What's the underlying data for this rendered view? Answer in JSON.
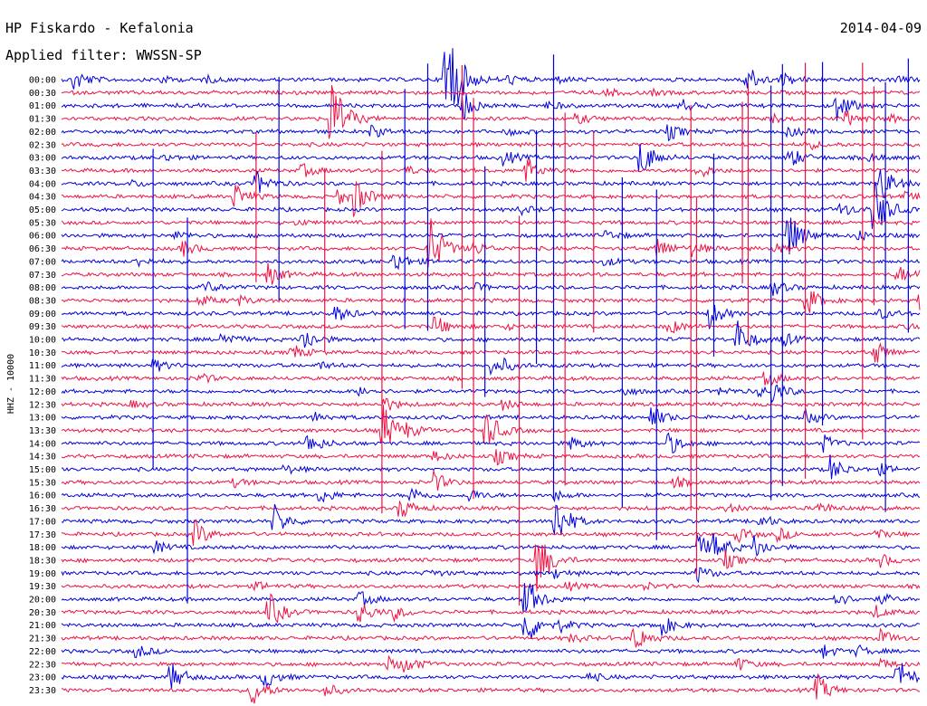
{
  "header": {
    "station": "HP Fiskardo - Kefalonia",
    "date": "2014-04-09",
    "filter": "Applied filter: WWSSN-SP"
  },
  "chart_data": {
    "type": "line",
    "title": "HP Fiskardo - Kefalonia",
    "date": "2014-04-09",
    "filter": "Applied filter: WWSSN-SP",
    "ylabel": "HHZ - 10000",
    "xlabel": "",
    "legend": "none",
    "grid": false,
    "colors": [
      "#0000dd",
      "#ee1144"
    ],
    "rows": [
      "00:00",
      "00:30",
      "01:00",
      "01:30",
      "02:00",
      "02:30",
      "03:00",
      "03:30",
      "04:00",
      "04:30",
      "05:00",
      "05:30",
      "06:00",
      "06:30",
      "07:00",
      "07:30",
      "08:00",
      "08:30",
      "09:00",
      "09:30",
      "10:00",
      "10:30",
      "11:00",
      "11:30",
      "12:00",
      "12:30",
      "13:00",
      "13:30",
      "14:00",
      "14:30",
      "15:00",
      "15:30",
      "16:00",
      "16:30",
      "17:00",
      "17:30",
      "18:00",
      "18:30",
      "19:00",
      "19:30",
      "20:00",
      "20:30",
      "21:00",
      "21:30",
      "22:00",
      "22:30",
      "23:00",
      "23:30"
    ],
    "row_minutes": 30,
    "events_minute_amplitude": [
      [
        [
          2,
          14
        ],
        [
          17,
          5
        ],
        [
          25,
          4
        ],
        [
          67,
          90
        ],
        [
          78,
          6
        ],
        [
          86,
          5
        ],
        [
          119,
          24
        ],
        [
          126,
          7
        ],
        [
          146,
          4
        ]
      ],
      [
        [
          95,
          5
        ],
        [
          103,
          3
        ]
      ],
      [
        [
          70,
          18
        ],
        [
          85,
          5
        ],
        [
          108,
          8
        ],
        [
          135,
          22
        ]
      ],
      [
        [
          47,
          55
        ],
        [
          90,
          6
        ],
        [
          124,
          5
        ],
        [
          137,
          10
        ],
        [
          144,
          6
        ]
      ],
      [
        [
          54,
          8
        ],
        [
          78,
          4
        ],
        [
          106,
          10
        ],
        [
          127,
          6
        ]
      ],
      [
        [
          130,
          6
        ]
      ],
      [
        [
          18,
          4
        ],
        [
          77,
          10
        ],
        [
          101,
          26
        ],
        [
          127,
          14
        ],
        [
          141,
          5
        ]
      ],
      [
        [
          42,
          8
        ],
        [
          60,
          5
        ],
        [
          81,
          16
        ],
        [
          111,
          10
        ]
      ],
      [
        [
          34,
          14
        ],
        [
          12,
          4
        ],
        [
          143,
          24
        ]
      ],
      [
        [
          30,
          16
        ],
        [
          48,
          10
        ],
        [
          51,
          22
        ],
        [
          147,
          5
        ]
      ],
      [
        [
          80,
          5
        ],
        [
          136,
          9
        ],
        [
          142,
          36
        ]
      ],
      [
        [
          41,
          3
        ]
      ],
      [
        [
          20,
          5
        ],
        [
          95,
          6
        ],
        [
          127,
          30
        ],
        [
          139,
          6
        ]
      ],
      [
        [
          21,
          10
        ],
        [
          64,
          45
        ],
        [
          72,
          8
        ],
        [
          104,
          14
        ],
        [
          110,
          8
        ],
        [
          124,
          8
        ]
      ],
      [
        [
          13,
          6
        ],
        [
          58,
          14
        ],
        [
          95,
          5
        ]
      ],
      [
        [
          36,
          14
        ],
        [
          146,
          10
        ],
        [
          150,
          6
        ]
      ],
      [
        [
          25,
          8
        ],
        [
          72,
          5
        ],
        [
          124,
          10
        ]
      ],
      [
        [
          24,
          7
        ],
        [
          31,
          5
        ],
        [
          130,
          18
        ],
        [
          150,
          10
        ]
      ],
      [
        [
          48,
          10
        ],
        [
          113,
          18
        ],
        [
          143,
          6
        ]
      ],
      [
        [
          65,
          14
        ],
        [
          77,
          4
        ],
        [
          106,
          10
        ],
        [
          148,
          5
        ]
      ],
      [
        [
          28,
          10
        ],
        [
          42,
          16
        ],
        [
          118,
          22
        ],
        [
          126,
          8
        ]
      ],
      [
        [
          40,
          10
        ],
        [
          142,
          14
        ]
      ],
      [
        [
          16,
          8
        ],
        [
          77,
          5
        ],
        [
          75,
          8
        ],
        [
          45,
          4
        ]
      ],
      [
        [
          24,
          6
        ],
        [
          123,
          6
        ],
        [
          123,
          4
        ]
      ],
      [
        [
          52,
          6
        ],
        [
          98,
          5
        ],
        [
          115,
          5
        ],
        [
          122,
          6
        ],
        [
          124,
          12
        ]
      ],
      [
        [
          12,
          4
        ],
        [
          56,
          10
        ],
        [
          77,
          6
        ]
      ],
      [
        [
          44,
          6
        ],
        [
          103,
          14
        ],
        [
          130,
          8
        ]
      ],
      [
        [
          56,
          32
        ],
        [
          74,
          26
        ],
        [
          60,
          6
        ]
      ],
      [
        [
          43,
          14
        ],
        [
          89,
          8
        ],
        [
          106,
          14
        ],
        [
          133,
          10
        ]
      ],
      [
        [
          76,
          10
        ],
        [
          65,
          6
        ]
      ],
      [
        [
          39,
          5
        ],
        [
          134,
          18
        ],
        [
          143,
          6
        ]
      ],
      [
        [
          30,
          5
        ],
        [
          65,
          12
        ],
        [
          107,
          6
        ]
      ],
      [
        [
          45,
          10
        ],
        [
          61,
          10
        ],
        [
          71,
          8
        ],
        [
          86,
          6
        ]
      ],
      [
        [
          59,
          14
        ],
        [
          132,
          8
        ],
        [
          116,
          5
        ]
      ],
      [
        [
          37,
          20
        ],
        [
          86,
          38
        ],
        [
          122,
          8
        ]
      ],
      [
        [
          23,
          18
        ],
        [
          118,
          8
        ],
        [
          125,
          8
        ],
        [
          142,
          6
        ]
      ],
      [
        [
          16,
          8
        ],
        [
          111,
          16
        ],
        [
          114,
          18
        ],
        [
          121,
          14
        ]
      ],
      [
        [
          83,
          40
        ],
        [
          116,
          10
        ],
        [
          143,
          8
        ]
      ],
      [
        [
          64,
          5
        ],
        [
          86,
          6
        ],
        [
          111,
          10
        ]
      ],
      [
        [
          34,
          5
        ],
        [
          88,
          5
        ],
        [
          101,
          6
        ]
      ],
      [
        [
          81,
          28
        ],
        [
          52,
          10
        ],
        [
          135,
          10
        ],
        [
          143,
          6
        ]
      ],
      [
        [
          36,
          24
        ],
        [
          52,
          14
        ],
        [
          58,
          8
        ],
        [
          142,
          8
        ]
      ],
      [
        [
          81,
          26
        ],
        [
          104,
          18
        ],
        [
          87,
          6
        ]
      ],
      [
        [
          89,
          5
        ],
        [
          100,
          18
        ],
        [
          143,
          10
        ]
      ],
      [
        [
          13,
          8
        ],
        [
          133,
          8
        ],
        [
          139,
          6
        ]
      ],
      [
        [
          57,
          8
        ],
        [
          60,
          10
        ],
        [
          118,
          8
        ],
        [
          143,
          6
        ]
      ],
      [
        [
          19,
          18
        ],
        [
          35,
          16
        ],
        [
          146,
          24
        ],
        [
          92,
          5
        ]
      ],
      [
        [
          33,
          22
        ],
        [
          46,
          8
        ],
        [
          132,
          18
        ]
      ]
    ],
    "vertical_spikes_minute": [
      16,
      46,
      64,
      70,
      86,
      93,
      104,
      111,
      124,
      130,
      133,
      142,
      144,
      119,
      22,
      34,
      38,
      56,
      60,
      72,
      74,
      80,
      83,
      88,
      98,
      110,
      114,
      120,
      126,
      140,
      148
    ],
    "axis_ticks": [
      "00:00",
      "00:30",
      "01:00",
      "01:30",
      "02:00",
      "02:30",
      "03:00",
      "03:30",
      "04:00",
      "04:30",
      "05:00",
      "05:30",
      "06:00",
      "06:30",
      "07:00",
      "07:30",
      "08:00",
      "08:30",
      "09:00",
      "09:30",
      "10:00",
      "10:30",
      "11:00",
      "11:30",
      "12:00",
      "12:30",
      "13:00",
      "13:30",
      "14:00",
      "14:30",
      "15:00",
      "15:30",
      "16:00",
      "16:30",
      "17:00",
      "17:30",
      "18:00",
      "18:30",
      "19:00",
      "19:30",
      "20:00",
      "20:30",
      "21:00",
      "21:30",
      "22:00",
      "22:30",
      "23:00",
      "23:30"
    ]
  }
}
